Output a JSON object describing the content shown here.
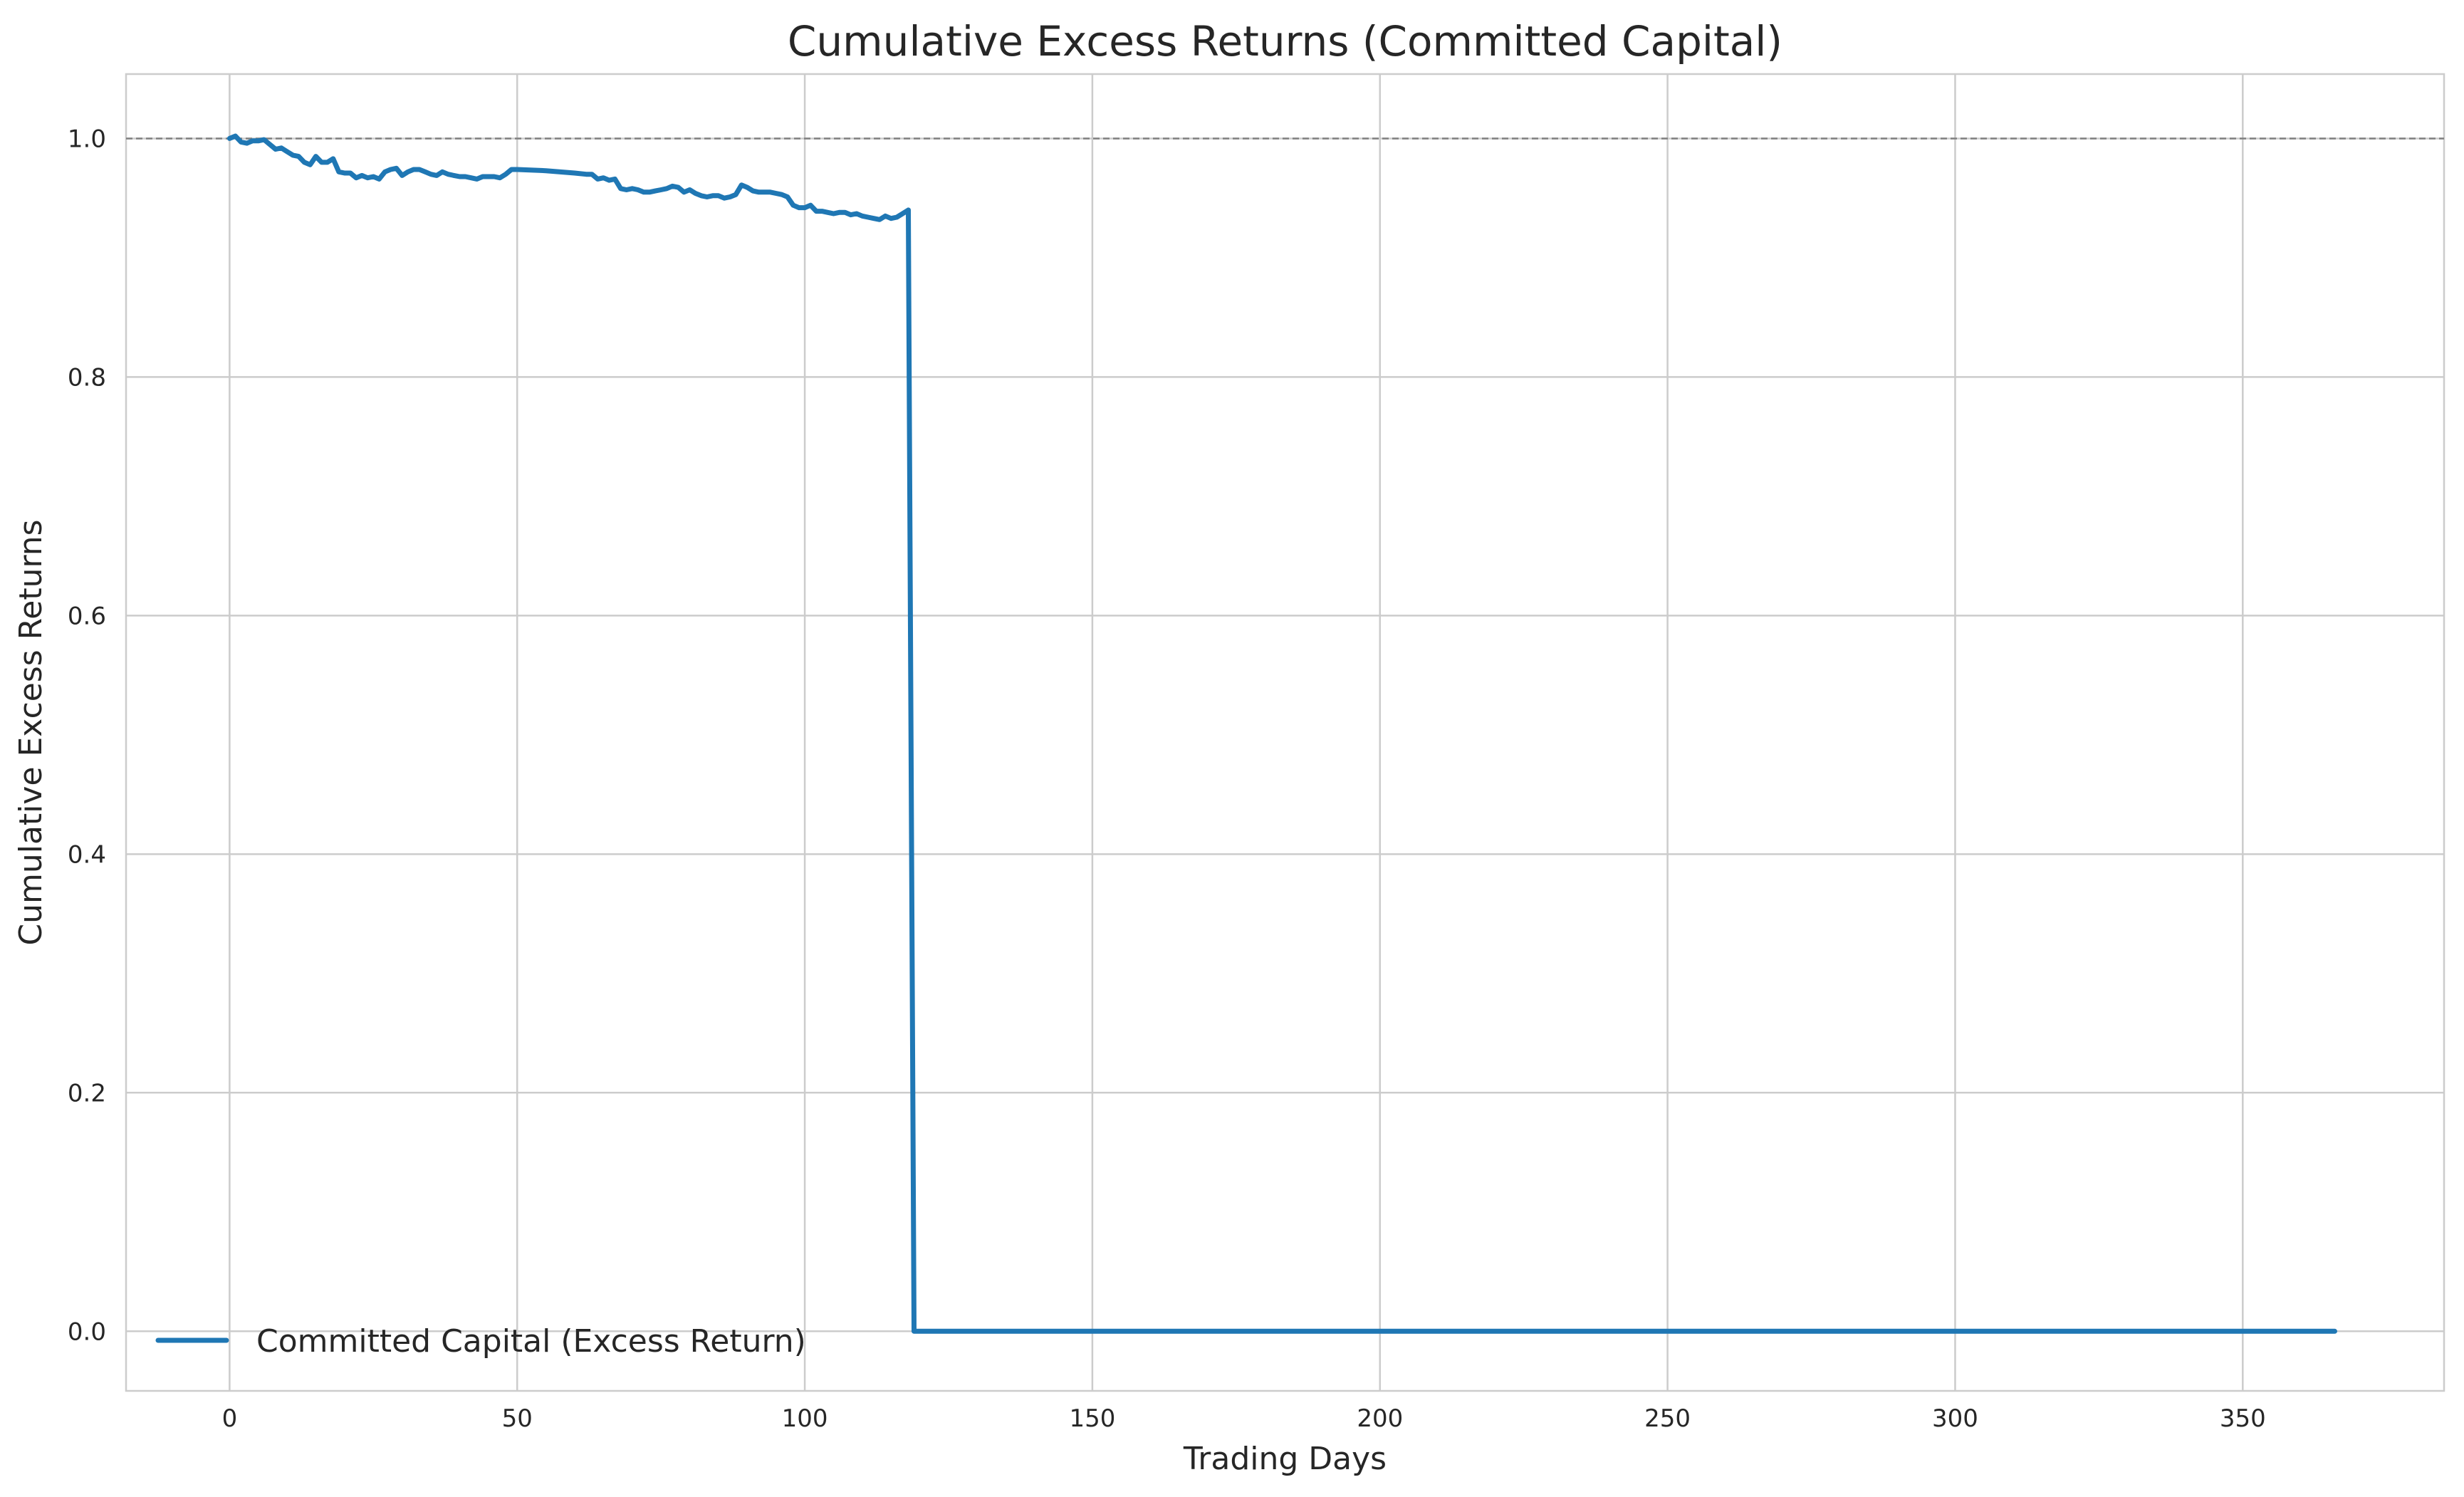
{
  "chart_data": {
    "type": "line",
    "title": "Cumulative Excess Returns (Committed Capital)",
    "xlabel": "Trading Days",
    "ylabel": "Cumulative Excess Returns",
    "xlim": [
      -18,
      385
    ],
    "ylim": [
      -0.05,
      1.054
    ],
    "xticks": [
      0,
      50,
      100,
      150,
      200,
      250,
      300,
      350
    ],
    "xtick_labels": [
      "0",
      "50",
      "100",
      "150",
      "200",
      "250",
      "300",
      "350"
    ],
    "yticks": [
      0.0,
      0.2,
      0.4,
      0.6,
      0.8,
      1.0
    ],
    "ytick_labels": [
      "0.0",
      "0.2",
      "0.4",
      "0.6",
      "0.8",
      "1.0"
    ],
    "grid": true,
    "legend_position": "lower-left",
    "reference_line": {
      "y": 1.0,
      "style": "dashed",
      "color": "#808080"
    },
    "series": [
      {
        "name": "Committed Capital (Excess Return)",
        "color": "#1f77b4",
        "x": [
          0,
          1,
          2,
          3,
          4,
          5,
          6,
          7,
          8,
          9,
          10,
          11,
          12,
          13,
          14,
          15,
          16,
          17,
          18,
          19,
          20,
          21,
          22,
          23,
          24,
          25,
          26,
          27,
          28,
          29,
          30,
          31,
          32,
          33,
          34,
          35,
          36,
          37,
          38,
          39,
          40,
          41,
          42,
          43,
          44,
          45,
          46,
          47,
          48,
          49,
          50,
          55,
          60,
          62,
          63,
          64,
          65,
          66,
          67,
          68,
          69,
          70,
          71,
          72,
          73,
          74,
          75,
          76,
          77,
          78,
          79,
          80,
          81,
          82,
          83,
          84,
          85,
          86,
          87,
          88,
          89,
          90,
          91,
          92,
          93,
          94,
          95,
          96,
          97,
          98,
          99,
          100,
          101,
          102,
          103,
          104,
          105,
          106,
          107,
          108,
          109,
          110,
          111,
          112,
          113,
          114,
          115,
          116,
          117,
          118,
          119,
          120,
          130,
          150,
          200,
          250,
          300,
          350,
          366
        ],
        "values": [
          1.0,
          1.002,
          0.997,
          0.996,
          0.998,
          0.998,
          0.999,
          0.995,
          0.991,
          0.992,
          0.989,
          0.986,
          0.985,
          0.98,
          0.978,
          0.985,
          0.98,
          0.98,
          0.983,
          0.972,
          0.971,
          0.971,
          0.967,
          0.969,
          0.967,
          0.968,
          0.966,
          0.972,
          0.974,
          0.975,
          0.969,
          0.972,
          0.974,
          0.974,
          0.972,
          0.97,
          0.969,
          0.972,
          0.97,
          0.969,
          0.968,
          0.968,
          0.967,
          0.966,
          0.968,
          0.968,
          0.968,
          0.967,
          0.97,
          0.974,
          0.974,
          0.973,
          0.971,
          0.97,
          0.97,
          0.966,
          0.967,
          0.965,
          0.966,
          0.958,
          0.957,
          0.958,
          0.957,
          0.955,
          0.955,
          0.956,
          0.957,
          0.958,
          0.96,
          0.959,
          0.955,
          0.957,
          0.954,
          0.952,
          0.951,
          0.952,
          0.952,
          0.95,
          0.951,
          0.953,
          0.961,
          0.959,
          0.956,
          0.955,
          0.955,
          0.955,
          0.954,
          0.953,
          0.951,
          0.944,
          0.942,
          0.942,
          0.944,
          0.939,
          0.939,
          0.938,
          0.937,
          0.938,
          0.938,
          0.936,
          0.937,
          0.935,
          0.934,
          0.933,
          0.932,
          0.935,
          0.933,
          0.934,
          0.937,
          0.94,
          0.0,
          0.0,
          0.0,
          0.0,
          0.0,
          0.0,
          0.0,
          0.0,
          0.0
        ]
      }
    ]
  }
}
